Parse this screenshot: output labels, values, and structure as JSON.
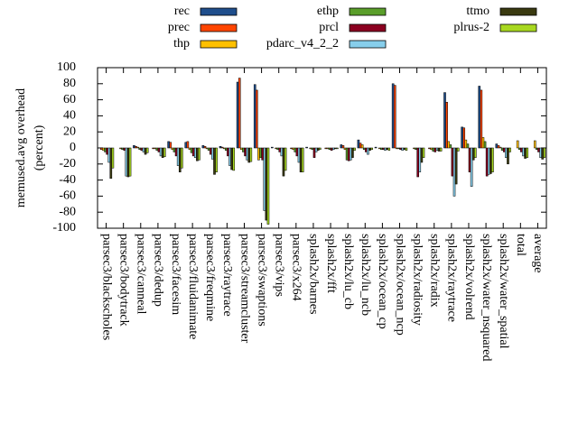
{
  "chart_data": {
    "type": "bar",
    "ylabel": [
      "memused.avg overhead",
      "(percent)"
    ],
    "categories": [
      "parsec3/blackscholes",
      "parsec3/bodytrack",
      "parsec3/canneal",
      "parsec3/dedup",
      "parsec3/facesim",
      "parsec3/fluidanimate",
      "parsec3/freqmine",
      "parsec3/raytrace",
      "parsec3/streamcluster",
      "parsec3/swaptions",
      "parsec3/vips",
      "parsec3/x264",
      "splash2x/barnes",
      "splash2x/fft",
      "splash2x/lu_cb",
      "splash2x/lu_ncb",
      "splash2x/ocean_cp",
      "splash2x/ocean_ncp",
      "splash2x/radiosity",
      "splash2x/radix",
      "splash2x/raytrace",
      "splash2x/volrend",
      "splash2x/water_nsquared",
      "splash2x/water_spatial",
      "total",
      "average"
    ],
    "series": [
      {
        "name": "rec",
        "color": "#1f4e8c",
        "values": [
          0,
          0,
          3,
          0,
          8,
          7,
          3,
          2,
          82,
          79,
          1,
          0,
          1,
          0,
          4,
          10,
          1,
          80,
          0,
          0,
          69,
          26,
          77,
          5,
          0,
          0
        ]
      },
      {
        "name": "prec",
        "color": "#ff4500",
        "values": [
          -2,
          0,
          2,
          -1,
          7,
          8,
          2,
          1,
          87,
          72,
          0,
          -1,
          0,
          -1,
          3,
          6,
          0,
          78,
          0,
          -1,
          57,
          25,
          72,
          3,
          0,
          0
        ]
      },
      {
        "name": "thp",
        "color": "#ffc000",
        "values": [
          -3,
          -1,
          1,
          -1,
          -2,
          -2,
          -1,
          -1,
          -2,
          -15,
          -1,
          -2,
          -1,
          -1,
          -2,
          4,
          -1,
          -1,
          -1,
          -2,
          8,
          10,
          13,
          1,
          9,
          9
        ]
      },
      {
        "name": "ethp",
        "color": "#5a9e2a",
        "values": [
          -5,
          -2,
          -2,
          -3,
          -5,
          -6,
          -3,
          -3,
          -5,
          -12,
          -2,
          -5,
          -2,
          -2,
          -15,
          -2,
          -2,
          -1,
          -2,
          -4,
          4,
          5,
          8,
          -3,
          -2,
          -2
        ]
      },
      {
        "name": "prcl",
        "color": "#8b0020",
        "values": [
          -8,
          -3,
          -3,
          -5,
          -10,
          -10,
          -8,
          -10,
          -10,
          -15,
          -5,
          -10,
          -12,
          -3,
          -16,
          -5,
          -2,
          -2,
          -36,
          -5,
          -35,
          -30,
          -35,
          -5,
          -5,
          -5
        ]
      },
      {
        "name": "pdarc_v4_2_2",
        "color": "#87ceeb",
        "values": [
          -18,
          -35,
          -5,
          -10,
          -22,
          -12,
          -14,
          -22,
          -15,
          -78,
          -10,
          -18,
          -5,
          -2,
          -15,
          -8,
          -3,
          -3,
          -30,
          -3,
          -60,
          -48,
          -33,
          -12,
          -10,
          -12
        ]
      },
      {
        "name": "ttmo",
        "color": "#3a3a10",
        "values": [
          -38,
          -36,
          -8,
          -12,
          -30,
          -16,
          -33,
          -27,
          -18,
          -90,
          -35,
          -30,
          -3,
          -1,
          -12,
          -3,
          -2,
          -2,
          -18,
          -4,
          -45,
          -15,
          -32,
          -20,
          -13,
          -14
        ]
      },
      {
        "name": "plrus-2",
        "color": "#a8d820",
        "values": [
          -25,
          -35,
          -6,
          -11,
          -25,
          -15,
          -30,
          -28,
          -17,
          -95,
          -28,
          -30,
          -2,
          -1,
          -3,
          -2,
          -3,
          -3,
          -12,
          -4,
          -4,
          -12,
          -30,
          -5,
          -12,
          -12
        ]
      }
    ],
    "ylim": [
      -100,
      100
    ],
    "yticks": [
      -100,
      -80,
      -60,
      -40,
      -20,
      0,
      20,
      40,
      60,
      80,
      100
    ]
  }
}
